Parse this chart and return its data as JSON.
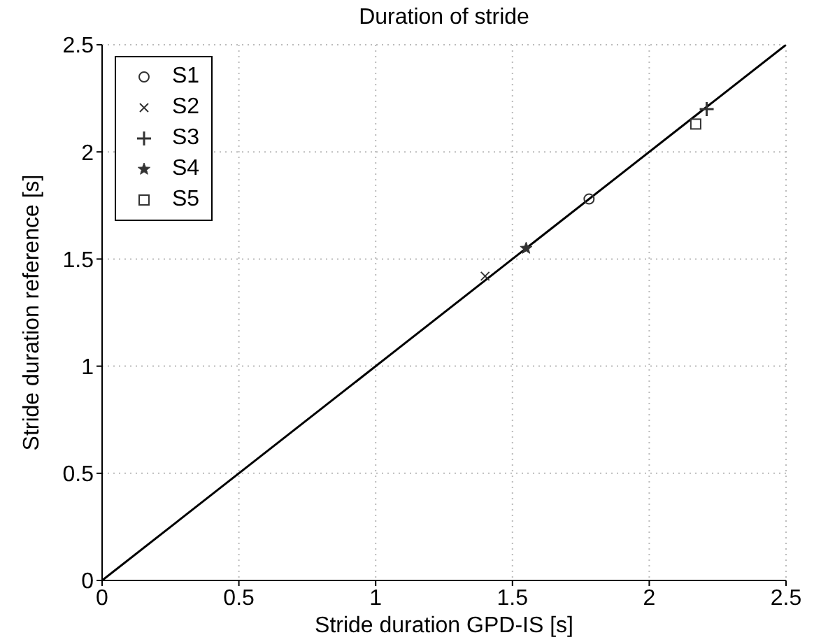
{
  "chart_data": {
    "type": "scatter",
    "title": "Duration of stride",
    "xlabel": "Stride duration GPD-IS [s]",
    "ylabel": "Stride duration reference [s]",
    "xlim": [
      0,
      2.5
    ],
    "ylim": [
      0,
      2.5
    ],
    "xticks": [
      0,
      0.5,
      1,
      1.5,
      2,
      2.5
    ],
    "yticks": [
      0,
      0.5,
      1,
      1.5,
      2,
      2.5
    ],
    "grid": true,
    "legend": "top left",
    "series": [
      {
        "type": "line",
        "color": "#000000",
        "marker": "none",
        "x": [
          0,
          2.5
        ],
        "values": [
          0,
          2.5
        ]
      },
      {
        "name": "S1",
        "color": "#333333",
        "marker": "circle",
        "x": [
          1.78
        ],
        "values": [
          1.78
        ]
      },
      {
        "name": "S2",
        "color": "#333333",
        "marker": "cross",
        "x": [
          1.4
        ],
        "values": [
          1.42
        ]
      },
      {
        "name": "S3",
        "color": "#333333",
        "marker": "plus",
        "x": [
          2.21
        ],
        "values": [
          2.2
        ]
      },
      {
        "name": "S4",
        "color": "#333333",
        "marker": "star",
        "x": [
          1.55
        ],
        "values": [
          1.55
        ]
      },
      {
        "name": "S5",
        "color": "#333333",
        "marker": "square",
        "x": [
          2.17
        ],
        "values": [
          2.13
        ]
      }
    ]
  }
}
